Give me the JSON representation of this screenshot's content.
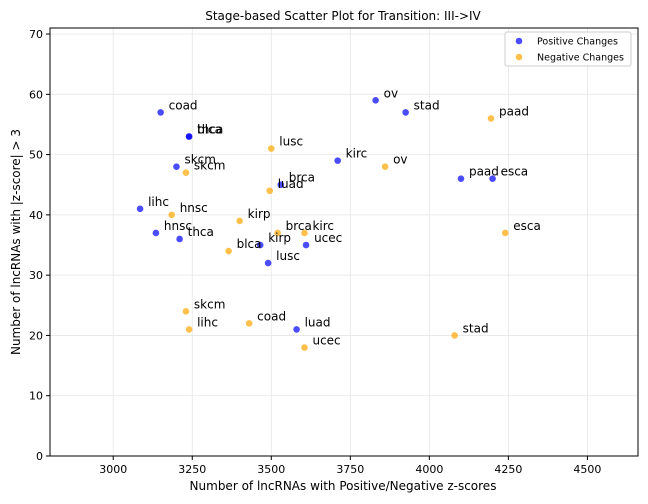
{
  "chart_data": {
    "type": "scatter",
    "title": "Stage-based Scatter Plot for Transition: III->IV",
    "xlabel": "Number of lncRNAs with Positive/Negative z-scores",
    "ylabel": "Number of lncRNAs with |z-score| > 3",
    "xlim": [
      2800,
      4660
    ],
    "ylim": [
      0,
      71
    ],
    "xticks": [
      3000,
      3250,
      3500,
      3750,
      4000,
      4250,
      4500
    ],
    "yticks": [
      0,
      10,
      20,
      30,
      40,
      50,
      60,
      70
    ],
    "grid": true,
    "legend_position": "top-right",
    "series": [
      {
        "name": "Positive Changes",
        "color": "#0000ff",
        "points": [
          {
            "label": "coad",
            "x": 3150,
            "y": 57
          },
          {
            "label": "thca",
            "x": 3240,
            "y": 53
          },
          {
            "label": "blca",
            "x": 3240,
            "y": 53
          },
          {
            "label": "skcm",
            "x": 3200,
            "y": 48
          },
          {
            "label": "lihc",
            "x": 3085,
            "y": 41
          },
          {
            "label": "hnsc",
            "x": 3135,
            "y": 37
          },
          {
            "label": "thca",
            "x": 3210,
            "y": 36
          },
          {
            "label": "kirp",
            "x": 3465,
            "y": 35
          },
          {
            "label": "lusc",
            "x": 3490,
            "y": 32
          },
          {
            "label": "brca",
            "x": 3530,
            "y": 45
          },
          {
            "label": "ucec",
            "x": 3610,
            "y": 35
          },
          {
            "label": "luad",
            "x": 3580,
            "y": 21
          },
          {
            "label": "kirc",
            "x": 3710,
            "y": 49
          },
          {
            "label": "ov",
            "x": 3830,
            "y": 59
          },
          {
            "label": "stad",
            "x": 3925,
            "y": 57
          },
          {
            "label": "paad",
            "x": 4100,
            "y": 46
          },
          {
            "label": "esca",
            "x": 4200,
            "y": 46
          }
        ]
      },
      {
        "name": "Negative Changes",
        "color": "#ffa500",
        "points": [
          {
            "label": "lusc",
            "x": 3500,
            "y": 51
          },
          {
            "label": "luad",
            "x": 3495,
            "y": 44
          },
          {
            "label": "skcm",
            "x": 3230,
            "y": 47
          },
          {
            "label": "hnsc",
            "x": 3185,
            "y": 40
          },
          {
            "label": "kirp",
            "x": 3400,
            "y": 39
          },
          {
            "label": "brca",
            "x": 3520,
            "y": 37
          },
          {
            "label": "kirc",
            "x": 3605,
            "y": 37
          },
          {
            "label": "blca",
            "x": 3365,
            "y": 34
          },
          {
            "label": "skcm",
            "x": 3230,
            "y": 24
          },
          {
            "label": "lihc",
            "x": 3240,
            "y": 21
          },
          {
            "label": "coad",
            "x": 3430,
            "y": 22
          },
          {
            "label": "ucec",
            "x": 3605,
            "y": 18
          },
          {
            "label": "ov",
            "x": 3860,
            "y": 48
          },
          {
            "label": "paad",
            "x": 4195,
            "y": 56
          },
          {
            "label": "esca",
            "x": 4240,
            "y": 37
          },
          {
            "label": "stad",
            "x": 4080,
            "y": 20
          }
        ]
      }
    ]
  }
}
